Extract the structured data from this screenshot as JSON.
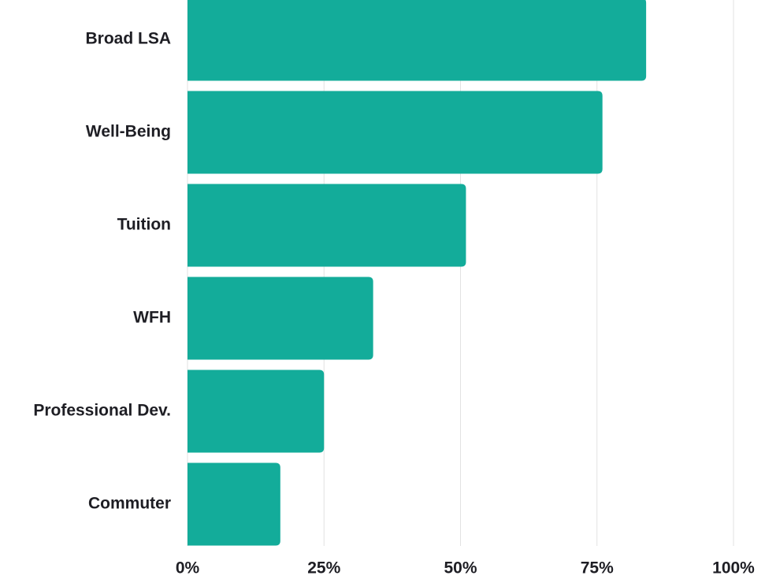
{
  "chart_data": {
    "type": "bar",
    "orientation": "horizontal",
    "categories": [
      "Broad LSA",
      "Well-Being",
      "Tuition",
      "WFH",
      "Professional Dev.",
      "Commuter"
    ],
    "values": [
      84,
      76,
      51,
      34,
      25,
      17
    ],
    "color": "#13ac9a",
    "xlim": [
      0,
      100
    ],
    "xticks": [
      {
        "value": 0,
        "label": "0%"
      },
      {
        "value": 25,
        "label": "25%"
      },
      {
        "value": 50,
        "label": "50%"
      },
      {
        "value": 75,
        "label": "75%"
      },
      {
        "value": 100,
        "label": "100%"
      }
    ],
    "grid": true
  }
}
